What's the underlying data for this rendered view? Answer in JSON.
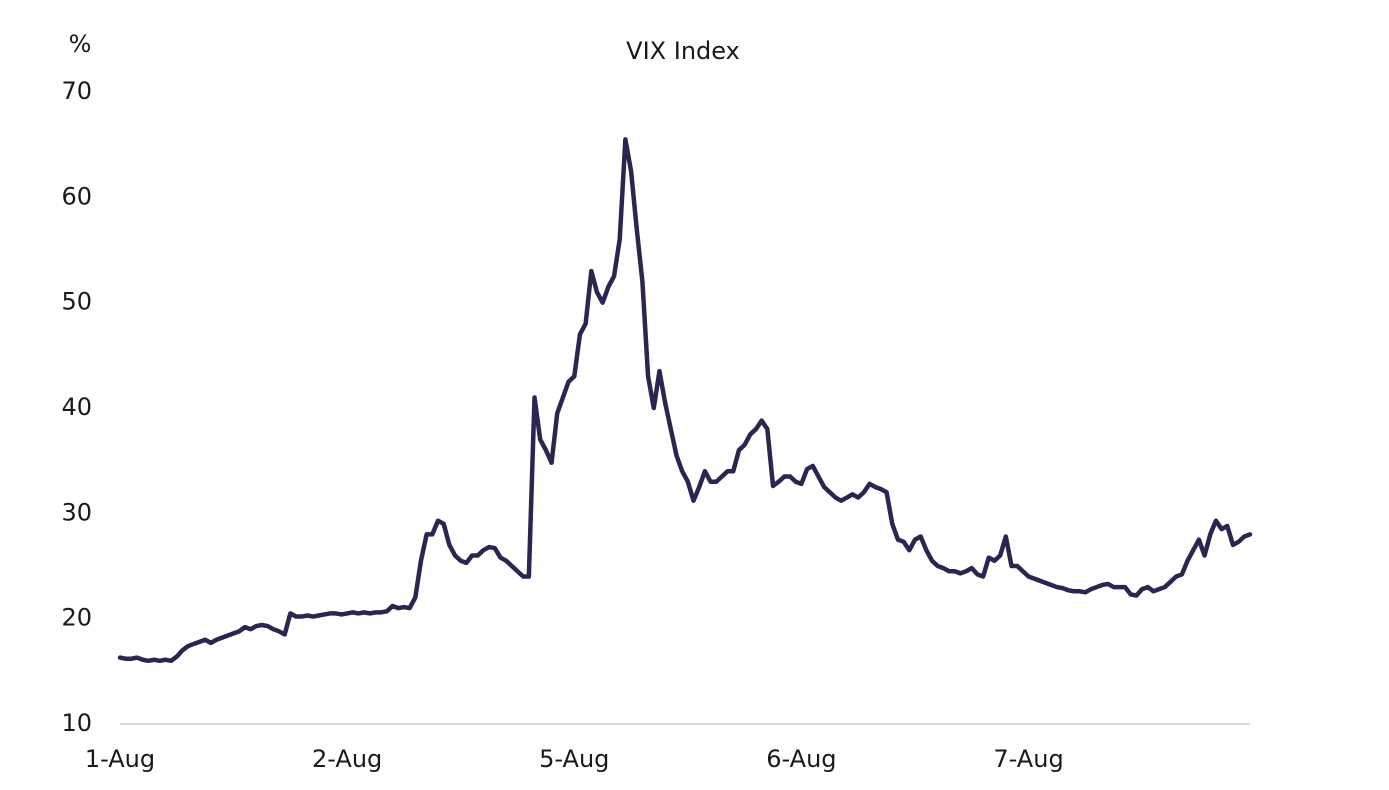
{
  "chart_data": {
    "type": "line",
    "title": "VIX Index",
    "y_label": "%",
    "color": "#2b2550",
    "ylim": [
      10,
      70
    ],
    "yticks": [
      10,
      20,
      30,
      40,
      50,
      60,
      70
    ],
    "grid": false,
    "categories": [
      "1-Aug",
      null,
      null,
      null,
      null,
      null,
      null,
      null,
      null,
      null,
      null,
      null,
      null,
      null,
      null,
      null,
      null,
      null,
      null,
      null,
      null,
      null,
      null,
      null,
      null,
      null,
      null,
      null,
      null,
      null,
      null,
      null,
      null,
      null,
      null,
      null,
      null,
      null,
      null,
      null,
      "2-Aug",
      null,
      null,
      null,
      null,
      null,
      null,
      null,
      null,
      null,
      null,
      null,
      null,
      null,
      null,
      null,
      null,
      null,
      null,
      null,
      null,
      null,
      null,
      null,
      null,
      null,
      null,
      null,
      null,
      null,
      null,
      null,
      null,
      null,
      null,
      null,
      null,
      null,
      null,
      null,
      "5-Aug",
      null,
      null,
      null,
      null,
      null,
      null,
      null,
      null,
      null,
      null,
      null,
      null,
      null,
      null,
      null,
      null,
      null,
      null,
      null,
      null,
      null,
      null,
      null,
      null,
      null,
      null,
      null,
      null,
      null,
      null,
      null,
      null,
      null,
      null,
      null,
      null,
      null,
      null,
      null,
      "6-Aug",
      null,
      null,
      null,
      null,
      null,
      null,
      null,
      null,
      null,
      null,
      null,
      null,
      null,
      null,
      null,
      null,
      null,
      null,
      null,
      null,
      null,
      null,
      null,
      null,
      null,
      null,
      null,
      null,
      null,
      null,
      null,
      null,
      null,
      null,
      null,
      null,
      null,
      null,
      null,
      "7-Aug",
      null,
      null,
      null,
      null,
      null,
      null,
      null,
      null,
      null,
      null,
      null,
      null,
      null,
      null,
      null,
      null,
      null,
      null,
      null,
      null,
      null,
      null,
      null,
      null,
      null,
      null,
      null,
      null,
      null,
      null,
      null,
      null,
      null,
      null,
      null,
      null,
      null,
      null,
      null
    ],
    "values": [
      16.3,
      16.2,
      16.2,
      16.3,
      16.1,
      16.0,
      16.1,
      16.0,
      16.1,
      16.0,
      16.4,
      17.0,
      17.4,
      17.6,
      17.8,
      18.0,
      17.7,
      18.0,
      18.2,
      18.4,
      18.6,
      18.8,
      19.2,
      19.0,
      19.3,
      19.4,
      19.3,
      19.0,
      18.8,
      18.5,
      20.5,
      20.2,
      20.2,
      20.3,
      20.2,
      20.3,
      20.4,
      20.5,
      20.5,
      20.4,
      20.5,
      20.6,
      20.5,
      20.6,
      20.5,
      20.6,
      20.6,
      20.7,
      21.2,
      21.0,
      21.1,
      21.0,
      22.0,
      25.5,
      28.0,
      28.0,
      29.3,
      29.0,
      27.0,
      26.0,
      25.5,
      25.3,
      26.0,
      26.0,
      26.5,
      26.8,
      26.7,
      25.8,
      25.5,
      25.0,
      24.5,
      24.0,
      24.0,
      41.0,
      37.0,
      36.0,
      34.8,
      39.5,
      41.0,
      42.5,
      43.0,
      47.0,
      48.0,
      53.0,
      51.0,
      50.0,
      51.5,
      52.5,
      56.0,
      65.5,
      62.5,
      57.0,
      52.0,
      43.0,
      40.0,
      43.5,
      40.5,
      38.0,
      35.5,
      34.0,
      33.0,
      31.2,
      32.5,
      34.0,
      33.0,
      33.0,
      33.5,
      34.0,
      34.0,
      36.0,
      36.5,
      37.5,
      38.0,
      38.8,
      38.0,
      32.6,
      33.0,
      33.5,
      33.5,
      33.0,
      32.8,
      34.2,
      34.5,
      33.5,
      32.5,
      32.0,
      31.5,
      31.2,
      31.5,
      31.8,
      31.5,
      32.0,
      32.8,
      32.5,
      32.3,
      32.0,
      29.0,
      27.5,
      27.3,
      26.5,
      27.5,
      27.8,
      26.5,
      25.5,
      25.0,
      24.8,
      24.5,
      24.5,
      24.3,
      24.5,
      24.8,
      24.2,
      24.0,
      25.8,
      25.5,
      26.0,
      27.8,
      25.0,
      25.0,
      24.5,
      24.0,
      23.8,
      23.6,
      23.4,
      23.2,
      23.0,
      22.9,
      22.7,
      22.6,
      22.6,
      22.5,
      22.8,
      23.0,
      23.2,
      23.3,
      23.0,
      23.0,
      23.0,
      22.3,
      22.2,
      22.8,
      23.0,
      22.6,
      22.8,
      23.0,
      23.5,
      24.0,
      24.2,
      25.5,
      26.5,
      27.5,
      26.0,
      28.0,
      29.3,
      28.5,
      28.8,
      27.0,
      27.3,
      27.8,
      28.0
    ]
  }
}
